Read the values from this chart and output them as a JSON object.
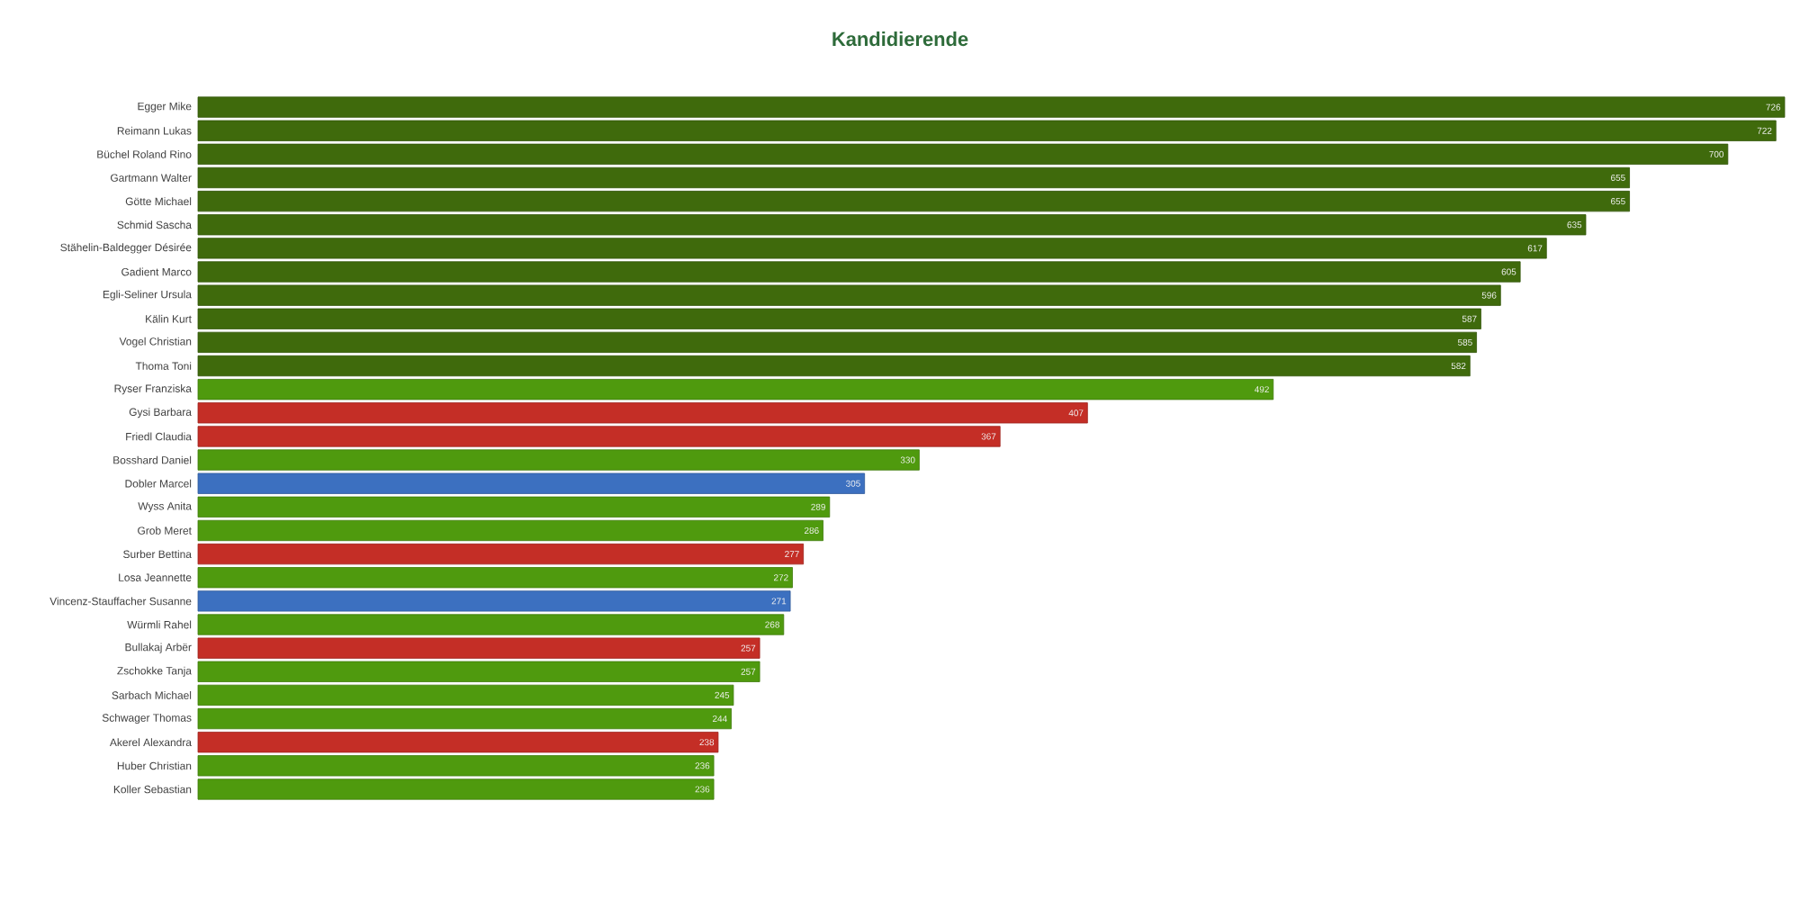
{
  "chart_data": {
    "type": "bar",
    "orientation": "horizontal",
    "title": "Kandidierende",
    "categories": [
      "Egger Mike",
      "Reimann Lukas",
      "Büchel Roland Rino",
      "Gartmann Walter",
      "Götte Michael",
      "Schmid Sascha",
      "Stähelin-Baldegger Désirée",
      "Gadient Marco",
      "Egli-Seliner Ursula",
      "Kälin Kurt",
      "Vogel Christian",
      "Thoma Toni",
      "Ryser Franziska",
      "Gysi Barbara",
      "Friedl Claudia",
      "Bosshard Daniel",
      "Dobler Marcel",
      "Wyss Anita",
      "Grob Meret",
      "Surber Bettina",
      "Losa Jeannette",
      "Vincenz-Stauffacher Susanne",
      "Würmli Rahel",
      "Bullakaj Arbër",
      "Zschokke Tanja",
      "Sarbach Michael",
      "Schwager Thomas",
      "Akerel Alexandra",
      "Huber Christian",
      "Koller Sebastian"
    ],
    "values": [
      726,
      722,
      700,
      655,
      655,
      635,
      617,
      605,
      596,
      587,
      585,
      582,
      492,
      407,
      367,
      330,
      305,
      289,
      286,
      277,
      272,
      271,
      268,
      257,
      257,
      245,
      244,
      238,
      236,
      236
    ],
    "colors": [
      "#3f6a0c",
      "#3f6a0c",
      "#3f6a0c",
      "#3f6a0c",
      "#3f6a0c",
      "#3f6a0c",
      "#3f6a0c",
      "#3f6a0c",
      "#3f6a0c",
      "#3f6a0c",
      "#3f6a0c",
      "#3f6a0c",
      "#4f9a0e",
      "#c42e26",
      "#c42e26",
      "#4f9a0e",
      "#3c70c0",
      "#4f9a0e",
      "#4f9a0e",
      "#c42e26",
      "#4f9a0e",
      "#3c70c0",
      "#4f9a0e",
      "#c42e26",
      "#4f9a0e",
      "#4f9a0e",
      "#4f9a0e",
      "#c42e26",
      "#4f9a0e",
      "#4f9a0e"
    ],
    "data_labels": true,
    "tick_labels": "y"
  }
}
